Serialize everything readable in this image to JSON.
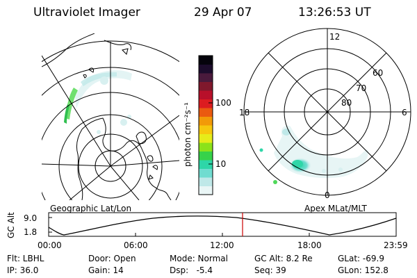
{
  "header": {
    "instrument": "Ultraviolet Imager",
    "date": "29 Apr 07",
    "time": "13:26:53 UT"
  },
  "colorbar": {
    "unit_label": "photon cm⁻²s⁻¹",
    "tick_labels": [
      "100",
      "10"
    ],
    "colors": [
      "#eaf6f6",
      "#bfe8e8",
      "#70dcd0",
      "#2ed6a8",
      "#36d24a",
      "#8ce21a",
      "#e6ec1a",
      "#f6c80e",
      "#f29a08",
      "#ea5a10",
      "#dc1c20",
      "#b8102a",
      "#80182c",
      "#4a1a3c",
      "#1c0c2c",
      "#05030c"
    ]
  },
  "left_panel": {
    "label": "Geographic Lat/Lon"
  },
  "right_panel": {
    "label": "Apex MLat/MLT",
    "mlt_labels": [
      "12",
      "18",
      "6",
      "0"
    ],
    "mlat_labels": [
      "60",
      "70",
      "80"
    ]
  },
  "altitude_plot": {
    "ylabel": "GC Alt",
    "y_ticks": [
      "9.0",
      "1.8"
    ],
    "x_ticks": [
      "00:00",
      "06:00",
      "12:00",
      "18:00",
      "23:59"
    ],
    "current_marker_time": "13:26:53",
    "marker_color": "#cc0000"
  },
  "info": {
    "filter": "Flt: LBHL",
    "door": "Door: Open",
    "mode": "Mode: Normal",
    "gc_alt": "GC Alt: 8.2 Re",
    "glat": "GLat: -69.9",
    "ip": "IP: 36.0",
    "gain": "Gain: 14",
    "dsp": "Dsp:   -5.4",
    "seq": "Seq: 39",
    "glon": "GLon: 152.8"
  }
}
